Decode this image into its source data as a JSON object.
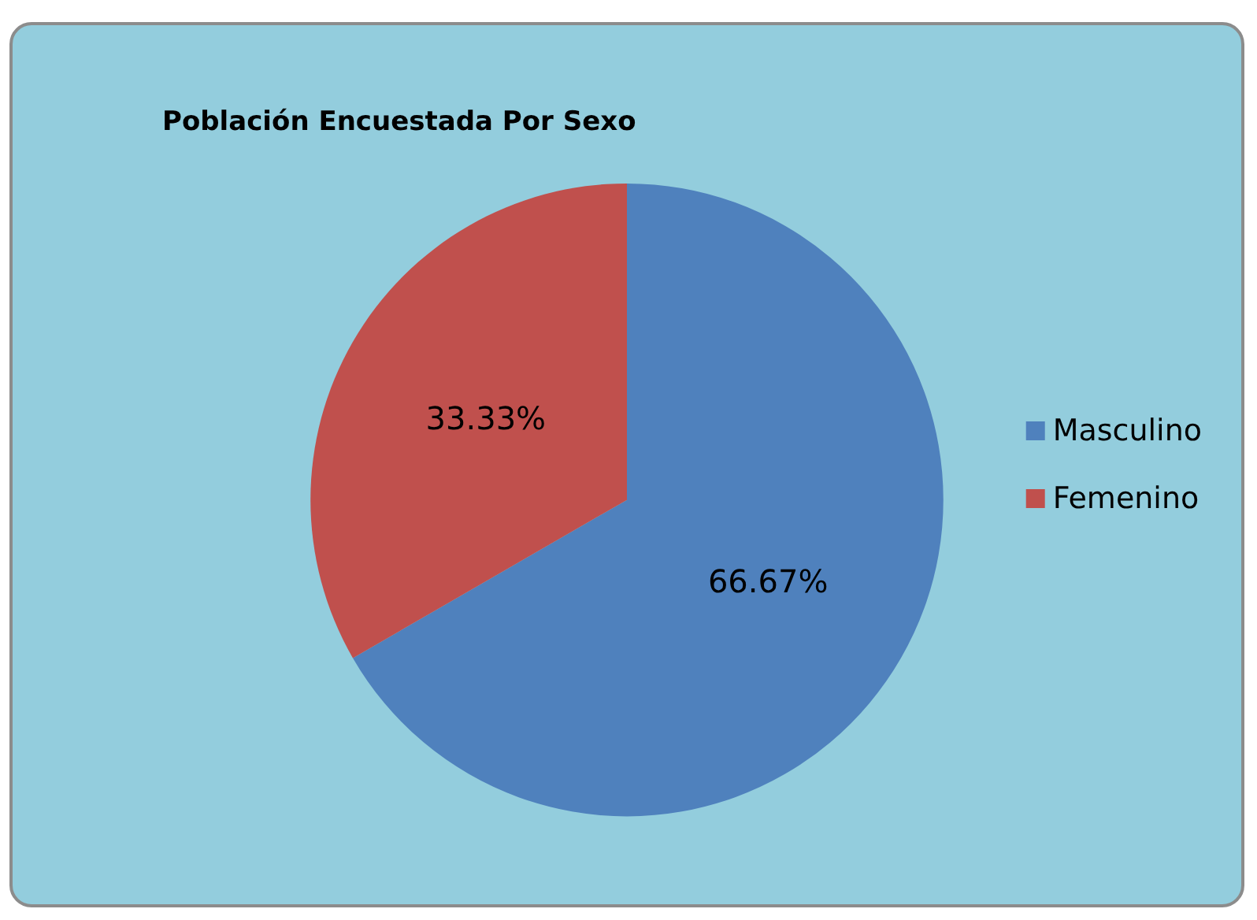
{
  "chart_data": {
    "type": "pie",
    "title": "Población Encuestada Por Sexo",
    "categories": [
      "Masculino",
      "Femenino"
    ],
    "values": [
      66.67,
      33.33
    ],
    "value_labels": [
      "66.67%",
      "33.33%"
    ],
    "colors": [
      "#4f81bd",
      "#c0504d"
    ],
    "legend": "right"
  }
}
